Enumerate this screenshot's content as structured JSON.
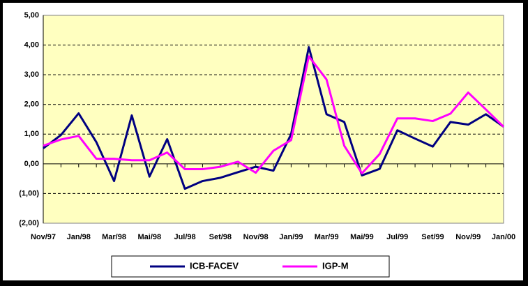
{
  "chart_data": {
    "type": "line",
    "categories": [
      "Nov/97",
      null,
      "Jan/98",
      null,
      "Mar/98",
      null,
      "Mai/98",
      null,
      "Jul/98",
      null,
      "Set/98",
      null,
      "Nov/98",
      null,
      "Jan/99",
      null,
      "Mar/99",
      null,
      "Mai/99",
      null,
      "Jul/99",
      null,
      "Set/99",
      null,
      "Nov/99",
      null,
      "Jan/00"
    ],
    "series": [
      {
        "name": "ICB-FACEV",
        "color": "#000080",
        "values": [
          0.52,
          0.97,
          1.7,
          0.73,
          -0.58,
          1.63,
          -0.43,
          0.83,
          -0.84,
          -0.58,
          -0.47,
          -0.28,
          -0.1,
          -0.23,
          1.0,
          3.93,
          1.67,
          1.41,
          -0.39,
          -0.17,
          1.13,
          0.85,
          0.58,
          1.41,
          1.32,
          1.67,
          1.25
        ]
      },
      {
        "name": "IGP-M",
        "color": "#ff00ff",
        "values": [
          0.61,
          0.82,
          0.94,
          0.17,
          0.17,
          0.12,
          0.12,
          0.38,
          -0.18,
          -0.18,
          -0.1,
          0.07,
          -0.3,
          0.44,
          0.8,
          3.62,
          2.84,
          0.61,
          -0.32,
          0.33,
          1.53,
          1.53,
          1.44,
          1.69,
          2.4,
          1.83,
          1.25
        ]
      }
    ],
    "ylim": [
      -2,
      5
    ],
    "yticks": [
      {
        "value": -2,
        "label": "(2,00)"
      },
      {
        "value": -1,
        "label": "(1,00)"
      },
      {
        "value": 0,
        "label": "0,00"
      },
      {
        "value": 1,
        "label": "1,00"
      },
      {
        "value": 2,
        "label": "2,00"
      },
      {
        "value": 3,
        "label": "3,00"
      },
      {
        "value": 4,
        "label": "4,00"
      },
      {
        "value": 5,
        "label": "5,00"
      }
    ],
    "grid": true,
    "negative_tick_color": "#cc0000",
    "plot_color": "#ffffc0",
    "legend": "bottom"
  }
}
